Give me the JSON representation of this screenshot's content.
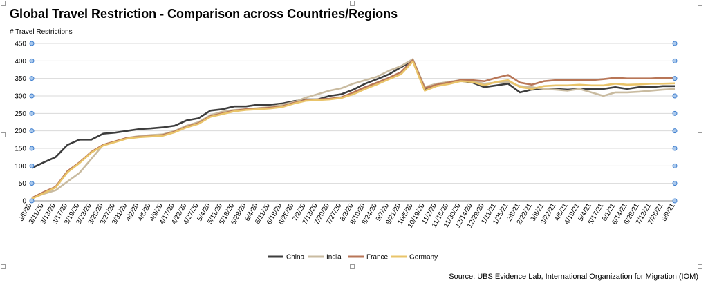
{
  "chart_data": {
    "type": "line",
    "title": "Global Travel Restriction - Comparison across Countries/Regions",
    "ylabel": "# Travel Restrictions",
    "xlabel": "",
    "source": "Source: UBS Evidence Lab, International Organization for Migration (IOM)",
    "ylim": [
      0,
      450
    ],
    "yticks": [
      0,
      50,
      100,
      150,
      200,
      250,
      300,
      350,
      400,
      450
    ],
    "xtick_labels": [
      "3/8/20",
      "3/11/20",
      "3/13/20",
      "3/17/20",
      "3/19/20",
      "3/23/20",
      "3/25/20",
      "3/27/20",
      "3/31/20",
      "4/2/20",
      "4/6/20",
      "4/9/20",
      "4/17/20",
      "4/22/20",
      "4/27/20",
      "5/4/20",
      "5/11/20",
      "5/18/20",
      "5/28/20",
      "6/4/20",
      "6/11/20",
      "6/18/20",
      "6/25/20",
      "7/2/20",
      "7/13/20",
      "7/20/20",
      "7/27/20",
      "8/3/20",
      "8/10/20",
      "8/24/20",
      "9/7/20",
      "9/21/20",
      "10/5/20",
      "10/19/20",
      "11/2/20",
      "11/16/20",
      "11/30/20",
      "12/14/20",
      "12/29/20",
      "1/11/21",
      "1/25/21",
      "2/8/21",
      "2/22/21",
      "3/8/21",
      "3/22/21",
      "4/6/21",
      "4/19/21",
      "5/4/21",
      "5/17/21",
      "6/1/21",
      "6/14/21",
      "6/28/21",
      "7/12/21",
      "7/26/21",
      "8/9/21"
    ],
    "grid": true,
    "legend_position": "bottom",
    "series": [
      {
        "name": "China",
        "color": "#3d3d3d",
        "values": [
          94,
          110,
          125,
          160,
          175,
          175,
          192,
          195,
          200,
          205,
          207,
          210,
          215,
          230,
          236,
          258,
          262,
          270,
          270,
          275,
          275,
          278,
          285,
          290,
          290,
          300,
          305,
          318,
          335,
          348,
          362,
          382,
          400,
          318,
          330,
          338,
          343,
          338,
          325,
          330,
          335,
          310,
          318,
          320,
          320,
          318,
          320,
          320,
          320,
          325,
          320,
          325,
          325,
          328,
          328
        ]
      },
      {
        "name": "India",
        "color": "#c9bba0",
        "values": [
          8,
          20,
          30,
          55,
          80,
          120,
          160,
          170,
          180,
          185,
          188,
          190,
          200,
          215,
          225,
          245,
          255,
          260,
          262,
          265,
          268,
          275,
          282,
          295,
          305,
          315,
          322,
          335,
          345,
          355,
          372,
          385,
          405,
          325,
          335,
          340,
          345,
          342,
          335,
          338,
          340,
          328,
          325,
          320,
          318,
          315,
          320,
          310,
          300,
          310,
          310,
          312,
          315,
          318,
          320
        ]
      },
      {
        "name": "France",
        "color": "#b87657",
        "values": [
          8,
          25,
          40,
          85,
          110,
          140,
          160,
          170,
          180,
          183,
          185,
          188,
          198,
          212,
          222,
          242,
          250,
          258,
          262,
          264,
          266,
          270,
          280,
          288,
          290,
          292,
          296,
          310,
          325,
          338,
          352,
          368,
          402,
          322,
          332,
          338,
          345,
          345,
          342,
          352,
          360,
          338,
          332,
          342,
          345,
          345,
          345,
          345,
          348,
          352,
          350,
          350,
          350,
          352,
          352
        ]
      },
      {
        "name": "Germany",
        "color": "#e9c46a",
        "values": [
          6,
          22,
          38,
          82,
          108,
          138,
          158,
          168,
          178,
          182,
          184,
          186,
          196,
          210,
          220,
          240,
          248,
          256,
          260,
          262,
          264,
          268,
          278,
          286,
          288,
          290,
          294,
          305,
          320,
          333,
          348,
          362,
          398,
          315,
          328,
          334,
          342,
          340,
          330,
          340,
          345,
          325,
          320,
          328,
          330,
          330,
          332,
          330,
          330,
          335,
          332,
          333,
          335,
          335,
          336
        ]
      }
    ]
  }
}
